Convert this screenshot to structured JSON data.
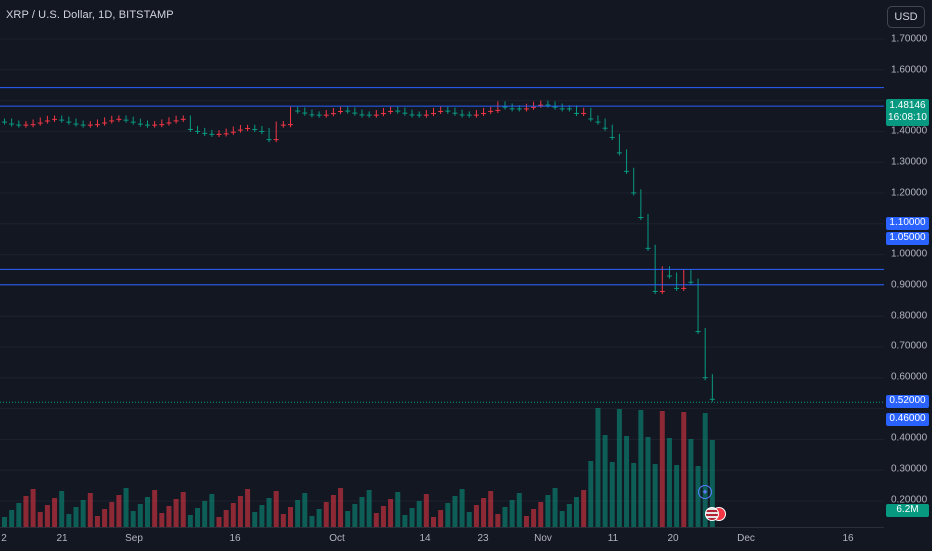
{
  "header": {
    "symbol_title": "XRP / U.S. Dollar, 1D, BITSTAMP",
    "currency_label": "USD"
  },
  "price_axis": {
    "ticks": [
      "1.70000",
      "1.60000",
      "1.40000",
      "1.30000",
      "1.20000",
      "1.00000",
      "0.90000",
      "0.80000",
      "0.70000",
      "0.60000",
      "0.40000",
      "0.30000",
      "0.20000"
    ]
  },
  "current_price": {
    "value": "1.48146",
    "countdown": "16:08:10",
    "color": "#089981"
  },
  "levels": [
    {
      "label": "1.10000",
      "price": 1.1
    },
    {
      "label": "1.05000",
      "price": 1.05
    },
    {
      "label": "0.52000",
      "price": 0.52
    },
    {
      "label": "0.46000",
      "price": 0.46
    }
  ],
  "volume_tag": "6.2M",
  "time_axis": {
    "ticks": [
      "2",
      "21",
      "Sep",
      "16",
      "Oct",
      "14",
      "23",
      "Nov",
      "11",
      "20",
      "Dec",
      "16"
    ]
  },
  "colors": {
    "up": "#089981",
    "down": "#f23645",
    "level": "#2962ff",
    "background": "#131722"
  },
  "icons": [
    "rocket-icon",
    "us-flag-icon",
    "red-event-icon"
  ]
}
